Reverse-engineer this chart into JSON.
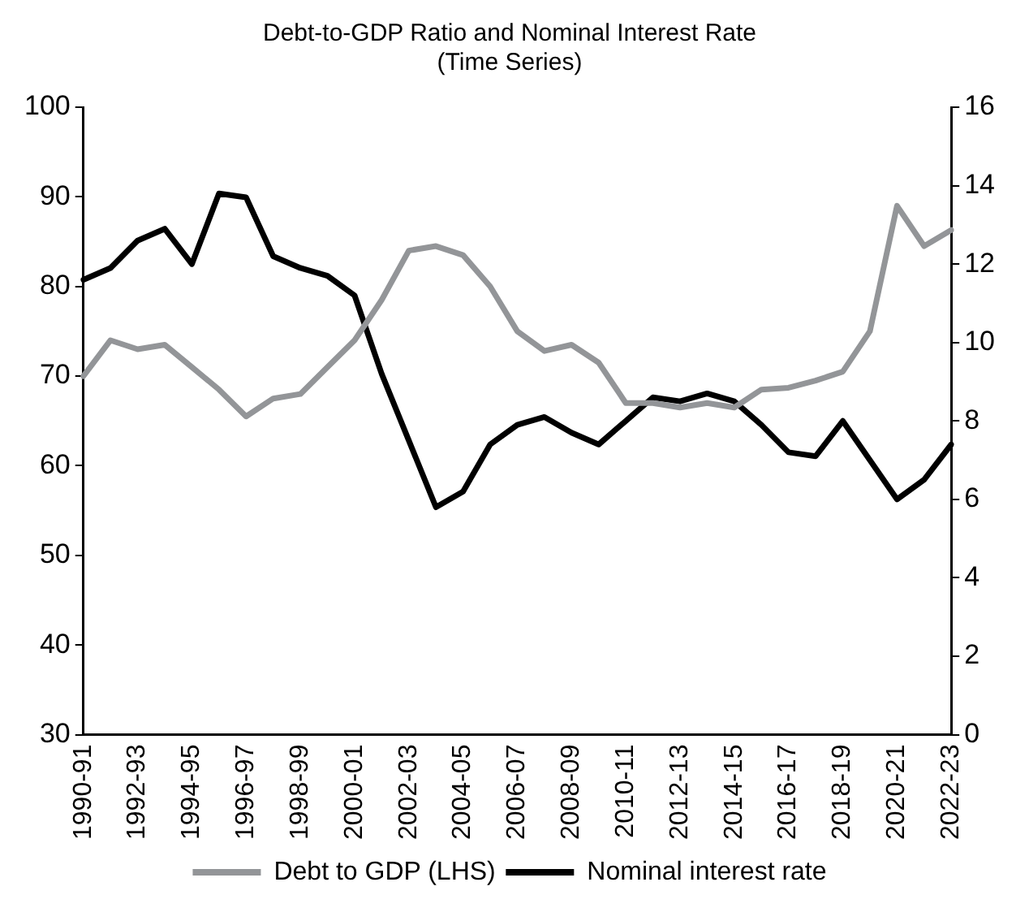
{
  "chart_data": {
    "type": "line",
    "title": [
      "Debt-to-GDP Ratio and Nominal Interest Rate",
      "(Time Series)"
    ],
    "categories": [
      "1990-91",
      null,
      "1992-93",
      null,
      "1994-95",
      null,
      "1996-97",
      null,
      "1998-99",
      null,
      "2000-01",
      null,
      "2002-03",
      null,
      "2004-05",
      null,
      "2006-07",
      null,
      "2008-09",
      null,
      "2010-11",
      null,
      "2012-13",
      null,
      "2014-15",
      null,
      "2016-17",
      null,
      "2018-19",
      null,
      "2020-21",
      null,
      "2022-23"
    ],
    "series": [
      {
        "name": "Debt to GDP (LHS)",
        "color": "#939598",
        "values": [
          70,
          74,
          73,
          73.5,
          71,
          68.5,
          65.5,
          67.5,
          68,
          71,
          74,
          78.5,
          84,
          84.5,
          83.5,
          80,
          75,
          72.8,
          73.5,
          71.5,
          67,
          67,
          66.5,
          67,
          66.5,
          68.5,
          68.7,
          69.5,
          70.5,
          75,
          89,
          84.5,
          86.3
        ]
      },
      {
        "name": "Nominal interest rate",
        "color": "#000000",
        "axis": "y2",
        "values": [
          11.6,
          11.9,
          12.6,
          12.9,
          12.0,
          13.8,
          13.7,
          12.2,
          11.9,
          11.7,
          11.2,
          9.2,
          7.5,
          5.8,
          6.2,
          7.4,
          7.9,
          8.1,
          7.7,
          7.4,
          8.0,
          8.6,
          8.5,
          8.7,
          8.5,
          7.9,
          7.2,
          7.1,
          8.0,
          7.0,
          6.0,
          6.5,
          7.4
        ]
      }
    ],
    "ylim": [
      30,
      100
    ],
    "yticks": [
      30,
      40,
      50,
      60,
      70,
      80,
      90,
      100
    ],
    "y2lim": [
      0,
      16
    ],
    "y2ticks": [
      0,
      2,
      4,
      6,
      8,
      10,
      12,
      14,
      16
    ],
    "grid": false,
    "legend": "bottom",
    "marker": "none",
    "line_style": "solid"
  }
}
